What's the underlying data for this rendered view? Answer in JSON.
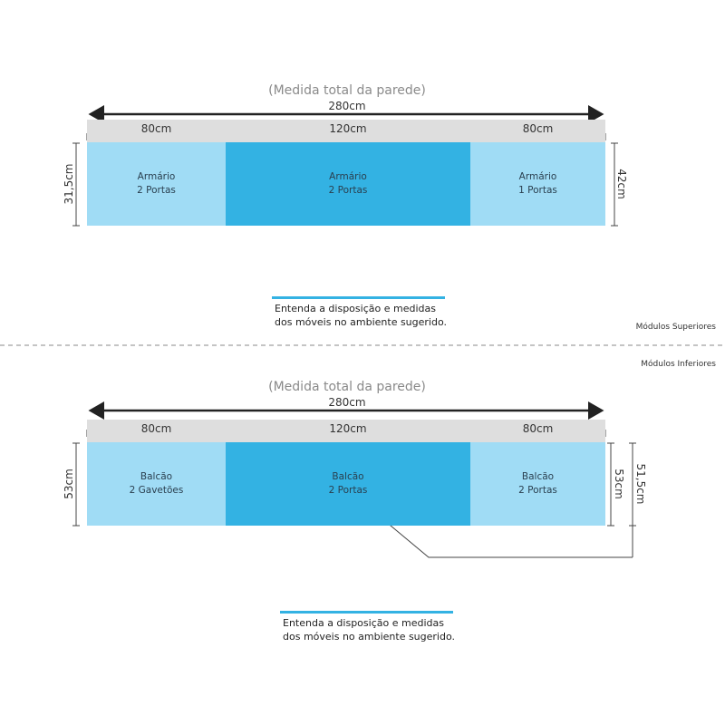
{
  "upper": {
    "title": "(Medida total da parede)",
    "total": "280cm",
    "segments": [
      "80cm",
      "120cm",
      "80cm"
    ],
    "boxes": [
      {
        "line1": "Armário",
        "line2": "2 Portas"
      },
      {
        "line1": "Armário",
        "line2": "2 Portas"
      },
      {
        "line1": "Armário",
        "line2": "1 Portas"
      }
    ],
    "left_height": "31,5cm",
    "right_height": "42cm",
    "caption1": "Entenda a disposição e medidas",
    "caption2": "dos móveis no ambiente sugerido.",
    "module_label": "Módulos Superiores"
  },
  "lower": {
    "module_label": "Módulos Inferiores",
    "title": "(Medida total da parede)",
    "total": "280cm",
    "segments": [
      "80cm",
      "120cm",
      "80cm"
    ],
    "boxes": [
      {
        "line1": "Balcão",
        "line2": "2 Gavetões"
      },
      {
        "line1": "Balcão",
        "line2": "2 Portas"
      },
      {
        "line1": "Balcão",
        "line2": "2 Portas"
      }
    ],
    "left_height": "53cm",
    "right_height": "53cm",
    "leader_height": "51,5cm",
    "caption1": "Entenda a disposição e medidas",
    "caption2": "dos móveis no ambiente sugerido."
  },
  "colors": {
    "light_module": "#a0dcf5",
    "dark_module": "#33b2e3",
    "accent": "#33b2e3",
    "wall_bar": "#dedede"
  }
}
